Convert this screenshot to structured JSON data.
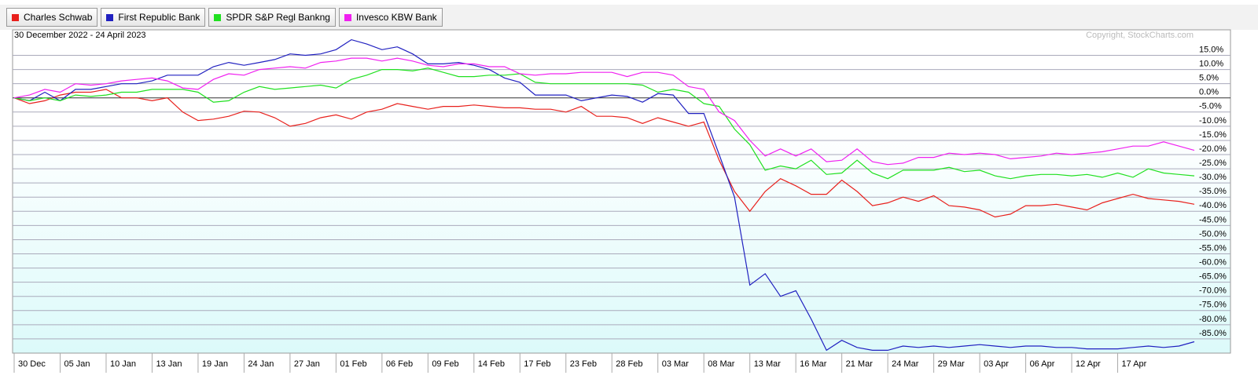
{
  "chart_data": {
    "type": "line",
    "subtitle": "30 December 2022 - 24 April 2023",
    "copyright": "Copyright, StockCharts.com",
    "categories": [
      "30 Dec",
      null,
      null,
      "05 Jan",
      null,
      null,
      "10 Jan",
      null,
      null,
      "13 Jan",
      null,
      null,
      "19 Jan",
      null,
      null,
      "24 Jan",
      null,
      null,
      "27 Jan",
      null,
      null,
      "01 Feb",
      null,
      null,
      "06 Feb",
      null,
      null,
      "09 Feb",
      null,
      null,
      "14 Feb",
      null,
      null,
      "17 Feb",
      null,
      null,
      "23 Feb",
      null,
      null,
      "28 Feb",
      null,
      null,
      "03 Mar",
      null,
      null,
      "08 Mar",
      null,
      null,
      "13 Mar",
      null,
      null,
      "16 Mar",
      null,
      null,
      "21 Mar",
      null,
      null,
      "24 Mar",
      null,
      null,
      "29 Mar",
      null,
      null,
      "03 Apr",
      null,
      null,
      "06 Apr",
      null,
      null,
      "12 Apr",
      null,
      null,
      "17 Apr",
      null,
      null,
      null,
      null,
      null
    ],
    "series": [
      {
        "name": "Charles Schwab",
        "color": "#e8201c",
        "values": [
          0,
          -2,
          -1,
          1,
          2,
          2,
          3,
          0,
          0,
          -1,
          0,
          -5,
          -8,
          -7.5,
          -6.5,
          -4.7,
          -5,
          -7,
          -10,
          -9,
          -7,
          -6,
          -7.5,
          -5,
          -4,
          -2,
          -3,
          -4,
          -3,
          -3,
          -2.5,
          -3,
          -3.5,
          -3.5,
          -4,
          -4,
          -5,
          -3,
          -6.5,
          -6.5,
          -7,
          -9,
          -7,
          -8.5,
          -10,
          -8.5,
          -22,
          -33,
          -40,
          -33,
          -28.5,
          -31,
          -34,
          -34,
          -29,
          -33,
          -38,
          -37,
          -35,
          -36.5,
          -34.5,
          -38,
          -38.5,
          -39.5,
          -42,
          -41,
          -38,
          -38,
          -37.5,
          -38.5,
          -39.5,
          -37,
          -35.5,
          -34,
          -35.5,
          -36,
          -36.5,
          -37.5
        ]
      },
      {
        "name": "First Republic Bank",
        "color": "#2020c0",
        "values": [
          0,
          -1,
          2,
          -1,
          3,
          3,
          4,
          5,
          5,
          6,
          8,
          8,
          8,
          11,
          12.5,
          11.5,
          12.5,
          13.5,
          15.5,
          15,
          15.5,
          17,
          20.5,
          19,
          17,
          18,
          15.5,
          12,
          12,
          12.5,
          11.5,
          10,
          7,
          5.5,
          1,
          1,
          1,
          -1,
          0,
          1,
          0.5,
          -1.5,
          1.5,
          1,
          -5.5,
          -5.5,
          -20,
          -35,
          -66,
          -62,
          -70,
          -68,
          -78,
          -89,
          -85.5,
          -88,
          -89,
          -89,
          -87.5,
          -88,
          -87.5,
          -88,
          -87.5,
          -87,
          -87.5,
          -88,
          -87.5,
          -87.5,
          -88,
          -88,
          -88.5,
          -88.5,
          -88.5,
          -88,
          -87.5,
          -88,
          -87.5,
          -86
        ]
      },
      {
        "name": "SPDR S&P Regl Bankng",
        "color": "#20e020",
        "values": [
          0,
          -1,
          0,
          -1,
          1,
          0.5,
          1,
          2,
          2,
          3,
          3,
          3,
          2,
          -1.5,
          -1,
          2,
          4,
          3,
          3.5,
          4,
          4.5,
          3.5,
          6.5,
          8,
          10,
          10,
          9.5,
          10.5,
          9,
          7.5,
          7.5,
          8,
          8,
          8.5,
          5.5,
          5,
          5,
          5,
          5,
          5,
          5,
          4.5,
          2,
          3,
          2,
          -2,
          -3,
          -11,
          -16.5,
          -25.5,
          -24,
          -25,
          -22,
          -27,
          -26.5,
          -22,
          -26.5,
          -28.5,
          -25.5,
          -25.5,
          -25.5,
          -24.5,
          -26,
          -25.5,
          -27.5,
          -28.5,
          -27.5,
          -27,
          -27,
          -27.5,
          -27,
          -28,
          -26.5,
          -28,
          -25,
          -26.5,
          -27,
          -27.5
        ]
      },
      {
        "name": "Invesco KBW Bank",
        "color": "#f020f0",
        "values": [
          0,
          1,
          3,
          2,
          5,
          4.5,
          5,
          6,
          6.5,
          7,
          6,
          3.5,
          3,
          6.5,
          8.5,
          8,
          10,
          10.5,
          11,
          10.5,
          12.5,
          13,
          14,
          14,
          13,
          14,
          13,
          11.5,
          11,
          12,
          12,
          11,
          11,
          8.5,
          8,
          8.5,
          8.5,
          9,
          9,
          9,
          7.5,
          9,
          9,
          8,
          4,
          3,
          -5,
          -8,
          -15,
          -20.5,
          -18,
          -20.5,
          -18,
          -22.5,
          -22,
          -18,
          -22.5,
          -23.5,
          -23,
          -21,
          -21,
          -19.5,
          -20,
          -19.5,
          -20,
          -21.5,
          -21,
          -20.5,
          -19.5,
          -20,
          -19.5,
          -19,
          -18,
          -17,
          -17,
          -15.5,
          -17,
          -18.5
        ]
      }
    ],
    "ylim": [
      -90,
      24
    ],
    "yticks": [
      {
        "value": 15,
        "label": "15.0%"
      },
      {
        "value": 10,
        "label": "10.0%"
      },
      {
        "value": 5,
        "label": "5.0%"
      },
      {
        "value": 0,
        "label": "0.0%"
      },
      {
        "value": -5,
        "label": "-5.0%"
      },
      {
        "value": -10,
        "label": "-10.0%"
      },
      {
        "value": -15,
        "label": "-15.0%"
      },
      {
        "value": -20,
        "label": "-20.0%"
      },
      {
        "value": -25,
        "label": "-25.0%"
      },
      {
        "value": -30,
        "label": "-30.0%"
      },
      {
        "value": -35,
        "label": "-35.0%"
      },
      {
        "value": -40,
        "label": "-40.0%"
      },
      {
        "value": -45,
        "label": "-45.0%"
      },
      {
        "value": -50,
        "label": "-50.0%"
      },
      {
        "value": -55,
        "label": "-55.0%"
      },
      {
        "value": -60,
        "label": "-60.0%"
      },
      {
        "value": -65,
        "label": "-65.0%"
      },
      {
        "value": -70,
        "label": "-70.0%"
      },
      {
        "value": -75,
        "label": "-75.0%"
      },
      {
        "value": -80,
        "label": "-80.0%"
      },
      {
        "value": -85,
        "label": "-85.0%"
      }
    ],
    "grid": true
  }
}
